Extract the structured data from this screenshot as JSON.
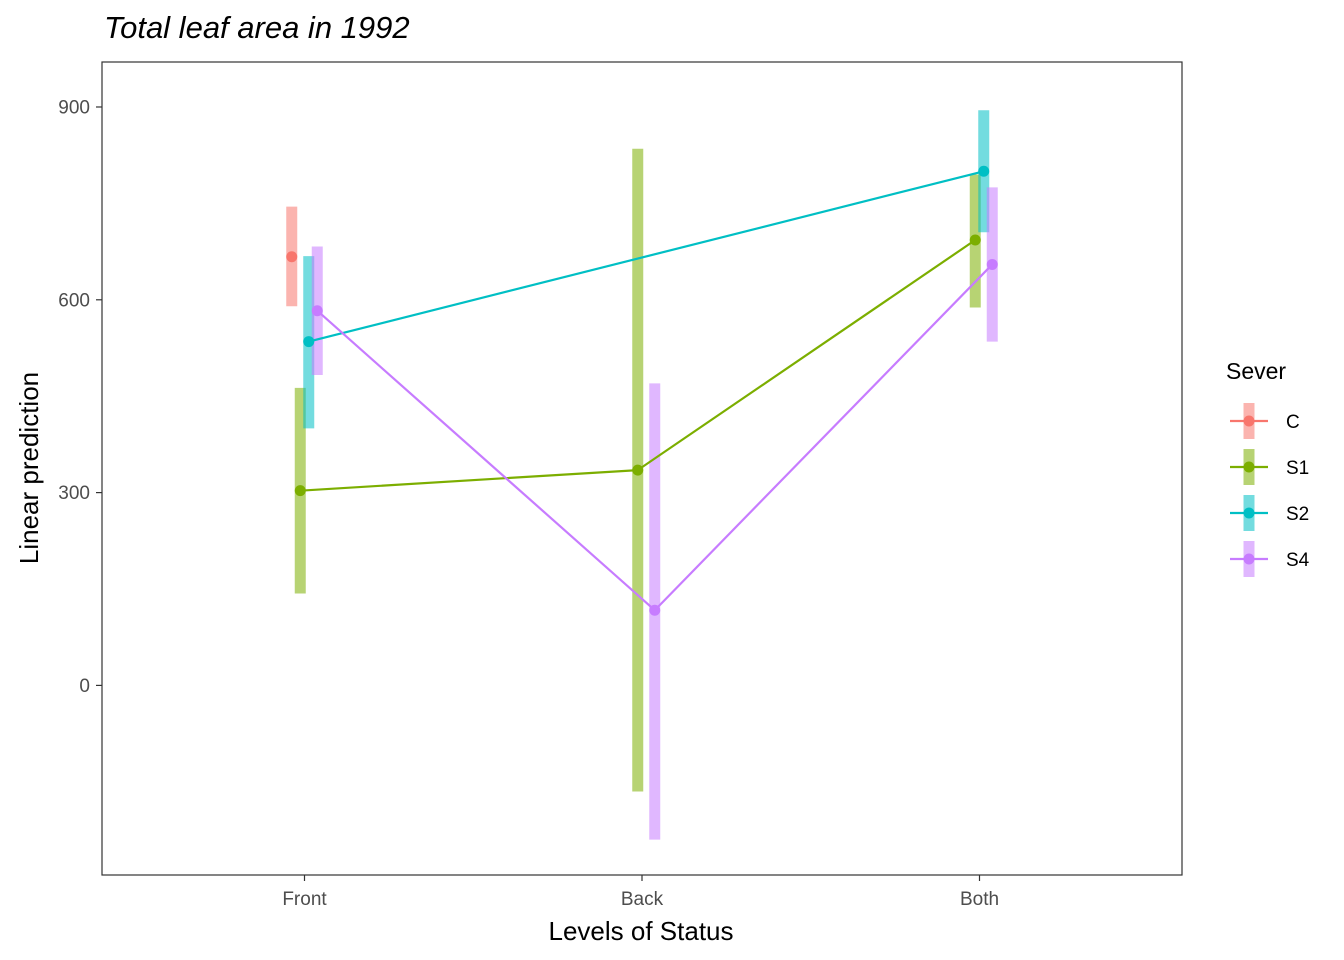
{
  "chart_data": {
    "type": "line",
    "title": "Total leaf area in 1992",
    "xlabel": "Levels of Status",
    "ylabel": "Linear prediction",
    "categories": [
      "Front",
      "Back",
      "Both"
    ],
    "ylim": [
      -295,
      970
    ],
    "yticks": [
      0,
      300,
      600,
      900
    ],
    "grid": false,
    "legend": {
      "title": "Sever",
      "position": "right"
    },
    "series": [
      {
        "name": "C",
        "color": "#F8766D",
        "values": [
          667,
          null,
          null
        ],
        "lower": [
          590,
          null,
          null
        ],
        "upper": [
          745,
          null,
          null
        ]
      },
      {
        "name": "S1",
        "color": "#7CAE00",
        "values": [
          303,
          335,
          693
        ],
        "lower": [
          143,
          -165,
          588
        ],
        "upper": [
          463,
          835,
          795
        ]
      },
      {
        "name": "S2",
        "color": "#00BFC4",
        "values": [
          535,
          null,
          800
        ],
        "lower": [
          400,
          null,
          705
        ],
        "upper": [
          668,
          null,
          895
        ]
      },
      {
        "name": "S4",
        "color": "#C77CFF",
        "values": [
          583,
          117,
          655
        ],
        "lower": [
          483,
          -240,
          535
        ],
        "upper": [
          683,
          470,
          775
        ]
      }
    ]
  }
}
